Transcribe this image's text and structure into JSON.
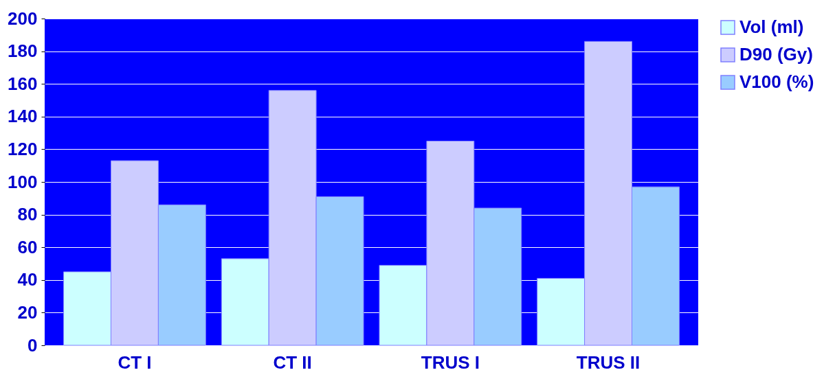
{
  "chart_data": {
    "type": "bar",
    "categories": [
      "CT I",
      "CT II",
      "TRUS I",
      "TRUS II"
    ],
    "series": [
      {
        "name": "Vol (ml)",
        "color": "#ccffff",
        "values": [
          45,
          53,
          49,
          41
        ]
      },
      {
        "name": "D90 (Gy)",
        "color": "#ccccff",
        "values": [
          113,
          156,
          125,
          186
        ]
      },
      {
        "name": "V100 (%)",
        "color": "#99ccff",
        "values": [
          86,
          91,
          84,
          97
        ]
      }
    ],
    "ylim": [
      0,
      200
    ],
    "yticks": [
      0,
      20,
      40,
      60,
      80,
      100,
      120,
      140,
      160,
      180,
      200
    ],
    "grid": "y",
    "legend": "right"
  }
}
